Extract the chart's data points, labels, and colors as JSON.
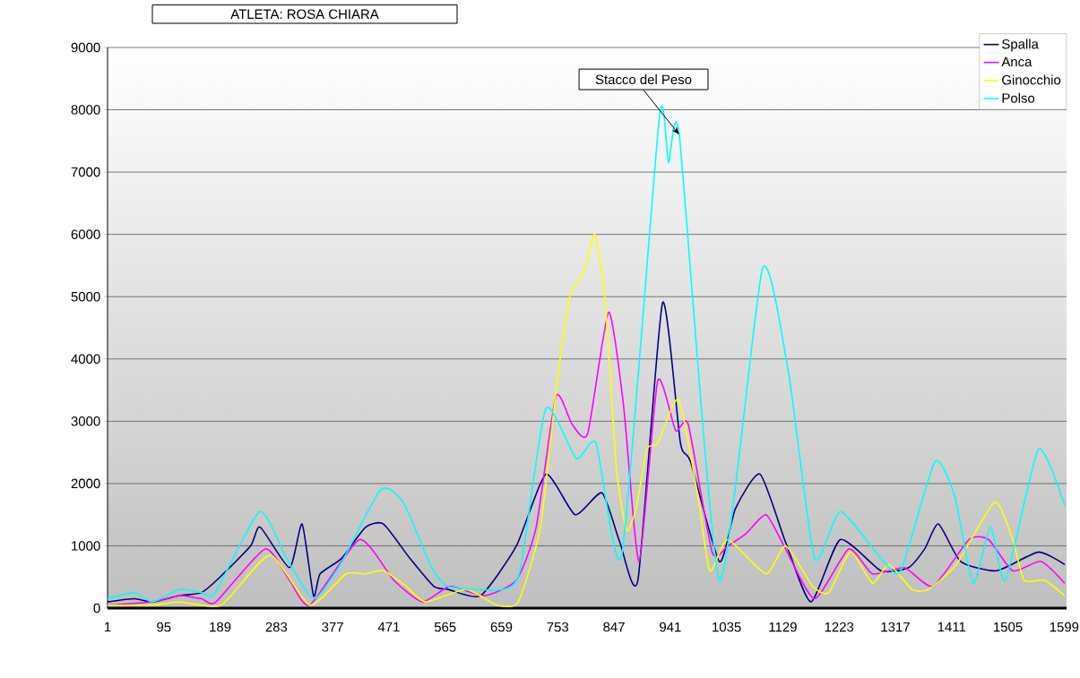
{
  "chart_data": {
    "type": "line",
    "title": "ATLETA: ROSA CHIARA",
    "annotations": [
      {
        "text": "Stacco del Peso",
        "x": 956,
        "y": 7600
      }
    ],
    "xlim": [
      1,
      1603
    ],
    "ylim": [
      0,
      9000
    ],
    "xticks": [
      1,
      95,
      189,
      283,
      377,
      471,
      565,
      659,
      753,
      847,
      941,
      1035,
      1129,
      1223,
      1317,
      1411,
      1505,
      1599
    ],
    "yticks": [
      0,
      1000,
      2000,
      3000,
      4000,
      5000,
      6000,
      7000,
      8000,
      9000
    ],
    "grid": "y",
    "legend": "top right",
    "marker": "none",
    "line_style": "solid",
    "series": [
      {
        "name": "Spalla",
        "color": "#000080",
        "x": [
          1,
          46,
          76,
          121,
          158,
          189,
          240,
          256,
          305,
          326,
          345,
          356,
          392,
          432,
          462,
          506,
          546,
          570,
          624,
          684,
          733,
          782,
          827,
          857,
          887,
          928,
          958,
          975,
          1023,
          1050,
          1091,
          1134,
          1176,
          1225,
          1293,
          1339,
          1366,
          1389,
          1426,
          1486,
          1556,
          1600
        ],
        "values": [
          100,
          150,
          100,
          200,
          250,
          500,
          1000,
          1300,
          650,
          1350,
          200,
          550,
          800,
          1300,
          1350,
          800,
          350,
          300,
          200,
          1000,
          2150,
          1500,
          1850,
          1050,
          450,
          4900,
          2650,
          2350,
          750,
          1600,
          2150,
          1050,
          100,
          1100,
          600,
          650,
          950,
          1350,
          750,
          600,
          900,
          700
        ]
      },
      {
        "name": "Anca",
        "color": "#ff00ff",
        "x": [
          1,
          76,
          121,
          158,
          182,
          264,
          305,
          339,
          422,
          479,
          527,
          573,
          630,
          684,
          717,
          750,
          777,
          803,
          838,
          863,
          889,
          920,
          950,
          971,
          1011,
          1037,
          1068,
          1101,
          1131,
          1182,
          1239,
          1279,
          1332,
          1380,
          1440,
          1473,
          1513,
          1560,
          1600
        ],
        "values": [
          50,
          100,
          200,
          150,
          100,
          950,
          450,
          50,
          1100,
          450,
          100,
          350,
          200,
          450,
          1300,
          3400,
          2950,
          2800,
          4750,
          3250,
          750,
          3650,
          2850,
          2950,
          900,
          1000,
          1200,
          1500,
          1000,
          150,
          950,
          550,
          650,
          350,
          1100,
          1100,
          600,
          750,
          400
        ]
      },
      {
        "name": "Ginocchio",
        "color": "#ffff00",
        "x": [
          1,
          76,
          121,
          191,
          272,
          339,
          399,
          432,
          462,
          500,
          532,
          600,
          651,
          687,
          724,
          751,
          773,
          797,
          815,
          833,
          851,
          868,
          884,
          902,
          920,
          955,
          988,
          1007,
          1037,
          1101,
          1134,
          1179,
          1206,
          1242,
          1279,
          1306,
          1345,
          1372,
          1419,
          1483,
          1513,
          1532,
          1566,
          1600
        ],
        "values": [
          50,
          50,
          100,
          50,
          850,
          50,
          550,
          550,
          600,
          350,
          100,
          300,
          50,
          100,
          1300,
          3550,
          5000,
          5400,
          6000,
          4850,
          2250,
          1250,
          1600,
          2550,
          2650,
          3350,
          1750,
          600,
          1100,
          550,
          1000,
          350,
          250,
          900,
          400,
          700,
          300,
          300,
          700,
          1700,
          1100,
          450,
          450,
          200
        ]
      },
      {
        "name": "Polso",
        "color": "#00ffff",
        "x": [
          1,
          46,
          76,
          121,
          158,
          181,
          255,
          300,
          345,
          390,
          457,
          495,
          540,
          570,
          660,
          690,
          733,
          784,
          817,
          860,
          923,
          938,
          956,
          1023,
          1095,
          1139,
          1182,
          1225,
          1293,
          1326,
          1383,
          1416,
          1447,
          1476,
          1501,
          1556,
          1600
        ],
        "values": [
          150,
          250,
          100,
          300,
          250,
          250,
          1550,
          800,
          150,
          700,
          1900,
          1700,
          700,
          350,
          300,
          600,
          3200,
          2400,
          2650,
          850,
          7900,
          7150,
          7600,
          450,
          5450,
          3750,
          800,
          1550,
          800,
          600,
          2350,
          1800,
          400,
          1300,
          450,
          2550,
          1650
        ]
      }
    ]
  }
}
